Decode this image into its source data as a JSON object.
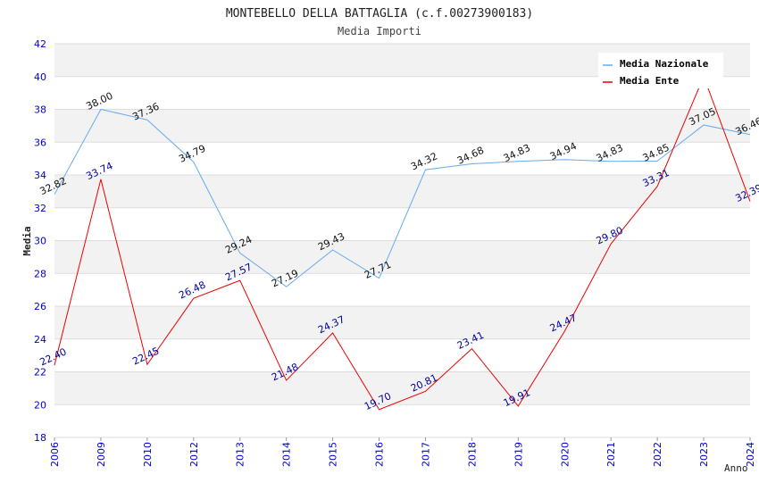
{
  "chart_data": {
    "type": "line",
    "title": "MONTEBELLO DELLA BATTAGLIA (c.f.00273900183)",
    "subtitle": "Media Importi",
    "xlabel": "Anno",
    "ylabel": "Media",
    "ylim": [
      18,
      42
    ],
    "yticks": [
      "18",
      "20",
      "22",
      "24",
      "26",
      "28",
      "30",
      "32",
      "34",
      "36",
      "38",
      "40",
      "42"
    ],
    "categories": [
      "2006",
      "2009",
      "2010",
      "2012",
      "2013",
      "2014",
      "2015",
      "2016",
      "2017",
      "2018",
      "2019",
      "2020",
      "2021",
      "2022",
      "2023",
      "2024"
    ],
    "grid": "horizontal bands",
    "legend_position": "top-right",
    "series": [
      {
        "name": "Media Nazionale",
        "color": "#66aaee",
        "values": [
          32.82,
          38.0,
          37.36,
          34.79,
          29.24,
          27.19,
          29.43,
          27.71,
          34.32,
          34.68,
          34.83,
          34.94,
          34.83,
          34.85,
          37.05,
          36.46
        ],
        "labels": [
          "32.82",
          "38.00",
          "37.36",
          "34.79",
          "29.24",
          "27.19",
          "29.43",
          "27.71",
          "34.32",
          "34.68",
          "34.83",
          "34.94",
          "34.83",
          "34.85",
          "37.05",
          "36.46"
        ]
      },
      {
        "name": "Media Ente",
        "color": "#ee0000",
        "values": [
          22.4,
          33.74,
          22.45,
          26.48,
          27.57,
          21.48,
          24.37,
          19.7,
          20.81,
          23.41,
          19.91,
          24.47,
          29.8,
          33.31,
          40.0,
          32.39
        ],
        "labels": [
          "22.40",
          "33.74",
          "22.45",
          "26.48",
          "27.57",
          "21.48",
          "24.37",
          "19.70",
          "20.81",
          "23.41",
          "19.91",
          "24.47",
          "29.80",
          "33.31",
          "",
          "32.39"
        ]
      }
    ]
  }
}
